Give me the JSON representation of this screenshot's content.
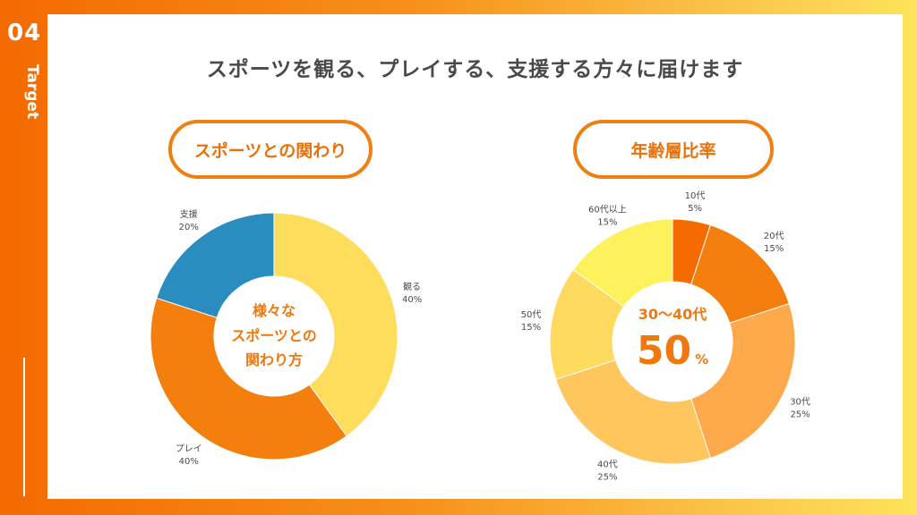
{
  "sidebar": {
    "number": "04",
    "label": "Target"
  },
  "headline": "スポーツを観る、プレイする、支援する方々に届けます",
  "left_title": "スポーツとの関わり",
  "right_title": "年齢層比率",
  "left_center": [
    "様々な",
    "スポーツとの",
    "関わり方"
  ],
  "right_center": {
    "top": "30〜40代",
    "big": "50",
    "unit": "%"
  },
  "chart_data": [
    {
      "type": "pie",
      "title": "スポーツとの関わり",
      "categories": [
        "観る",
        "プレイ",
        "支援"
      ],
      "values": [
        40,
        40,
        20
      ],
      "labels": [
        "40%",
        "40%",
        "20%"
      ],
      "colors": [
        "#fedd5c",
        "#f47f0c",
        "#2a8cbf"
      ]
    },
    {
      "type": "pie",
      "title": "年齢層比率",
      "categories": [
        "10代",
        "20代",
        "30代",
        "40代",
        "50代",
        "60代以上"
      ],
      "values": [
        5,
        15,
        25,
        25,
        15,
        15
      ],
      "labels": [
        "5%",
        "15%",
        "25%",
        "25%",
        "15%",
        "15%"
      ],
      "colors": [
        "#f56b00",
        "#f57f0e",
        "#fea94c",
        "#fec65c",
        "#fedb5f",
        "#fef25c"
      ]
    }
  ]
}
